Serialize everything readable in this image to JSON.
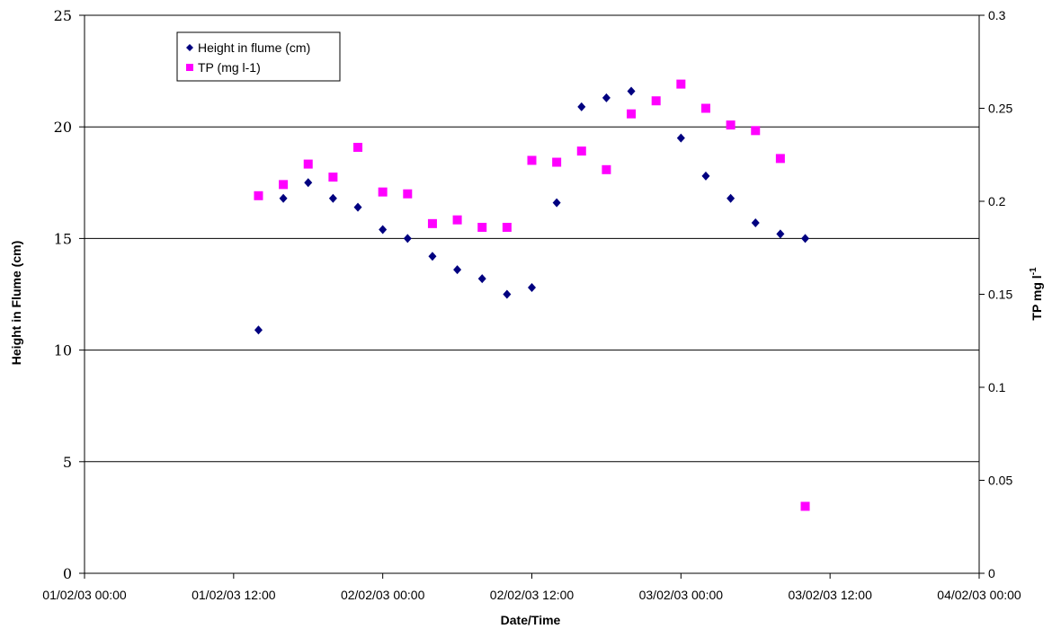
{
  "chart_data": {
    "type": "scatter",
    "title": "",
    "xlabel": "Date/Time",
    "ylabel": "Height in Flume (cm)",
    "y2label": {
      "main": "TP mg l",
      "sup": "-1"
    },
    "xlim": [
      "01/02/03 00:00",
      "04/02/03 00:00"
    ],
    "x_ticks": [
      "01/02/03 00:00",
      "01/02/03 12:00",
      "02/02/03 00:00",
      "02/02/03 12:00",
      "03/02/03 00:00",
      "03/02/03 12:00",
      "04/02/03 00:00"
    ],
    "ylim": [
      0,
      25
    ],
    "y_ticks": [
      "0",
      "5",
      "10",
      "15",
      "20",
      "25"
    ],
    "y2lim": [
      0,
      0.3
    ],
    "y2_ticks": [
      "0",
      "0.05",
      "0.1",
      "0.15",
      "0.2",
      "0.25",
      "0.3"
    ],
    "grid": "horizontal major gridlines",
    "legend_position": "top-left",
    "series": [
      {
        "name": "Height in flume (cm)",
        "axis": "left",
        "marker": "diamond",
        "color": "#000080",
        "points": [
          [
            "01/02/03 14:00",
            10.9
          ],
          [
            "01/02/03 16:00",
            16.8
          ],
          [
            "01/02/03 18:00",
            17.5
          ],
          [
            "01/02/03 20:00",
            16.8
          ],
          [
            "01/02/03 22:00",
            16.4
          ],
          [
            "02/02/03 00:00",
            15.4
          ],
          [
            "02/02/03 02:00",
            15.0
          ],
          [
            "02/02/03 04:00",
            14.2
          ],
          [
            "02/02/03 06:00",
            13.6
          ],
          [
            "02/02/03 08:00",
            13.2
          ],
          [
            "02/02/03 10:00",
            12.5
          ],
          [
            "02/02/03 12:00",
            12.8
          ],
          [
            "02/02/03 14:00",
            16.6
          ],
          [
            "02/02/03 16:00",
            20.9
          ],
          [
            "02/02/03 18:00",
            21.3
          ],
          [
            "02/02/03 20:00",
            21.6
          ],
          [
            "03/02/03 00:00",
            19.5
          ],
          [
            "03/02/03 02:00",
            17.8
          ],
          [
            "03/02/03 04:00",
            16.8
          ],
          [
            "03/02/03 06:00",
            15.7
          ],
          [
            "03/02/03 08:00",
            15.2
          ],
          [
            "03/02/03 10:00",
            15.0
          ]
        ]
      },
      {
        "name": "TP (mg l-1)",
        "axis": "right",
        "marker": "square",
        "color": "#FF00FF",
        "points": [
          [
            "01/02/03 14:00",
            0.203
          ],
          [
            "01/02/03 16:00",
            0.209
          ],
          [
            "01/02/03 18:00",
            0.22
          ],
          [
            "01/02/03 20:00",
            0.213
          ],
          [
            "01/02/03 22:00",
            0.229
          ],
          [
            "02/02/03 00:00",
            0.205
          ],
          [
            "02/02/03 02:00",
            0.204
          ],
          [
            "02/02/03 04:00",
            0.188
          ],
          [
            "02/02/03 06:00",
            0.19
          ],
          [
            "02/02/03 08:00",
            0.186
          ],
          [
            "02/02/03 10:00",
            0.186
          ],
          [
            "02/02/03 12:00",
            0.222
          ],
          [
            "02/02/03 14:00",
            0.221
          ],
          [
            "02/02/03 16:00",
            0.227
          ],
          [
            "02/02/03 18:00",
            0.217
          ],
          [
            "02/02/03 20:00",
            0.247
          ],
          [
            "02/02/03 22:00",
            0.254
          ],
          [
            "03/02/03 00:00",
            0.263
          ],
          [
            "03/02/03 02:00",
            0.25
          ],
          [
            "03/02/03 04:00",
            0.241
          ],
          [
            "03/02/03 06:00",
            0.238
          ],
          [
            "03/02/03 08:00",
            0.223
          ],
          [
            "03/02/03 10:00",
            0.036
          ]
        ]
      }
    ]
  }
}
